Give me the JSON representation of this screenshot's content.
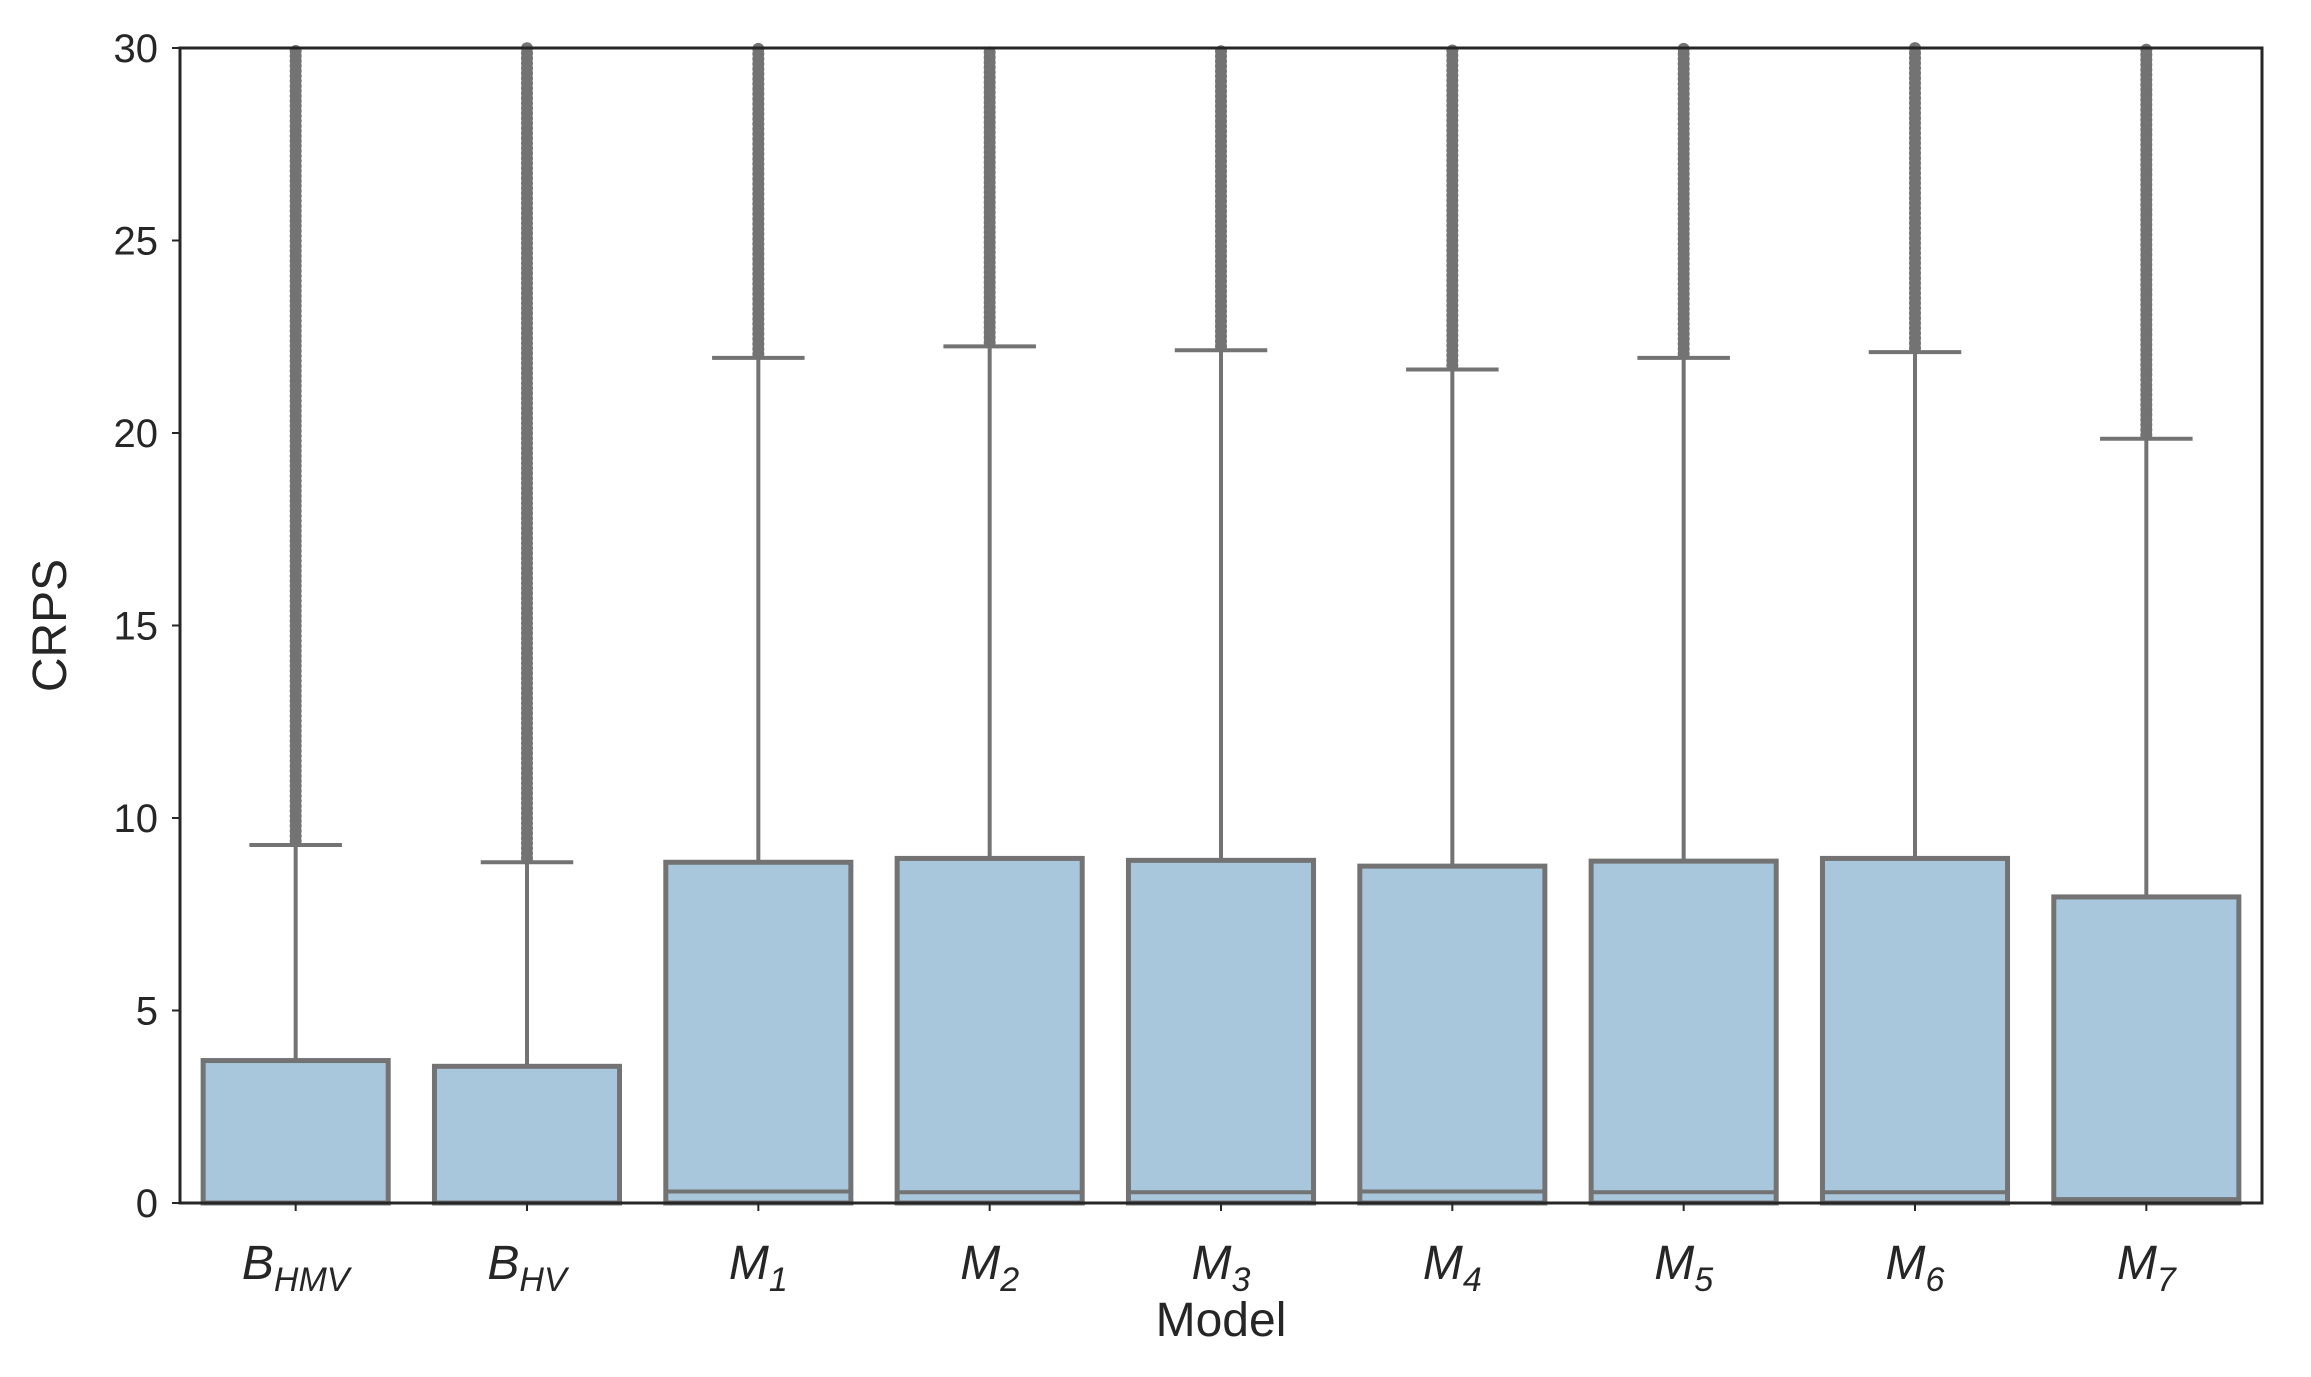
{
  "chart_data": {
    "type": "box",
    "xlabel": "Model",
    "ylabel": "CRPS",
    "ylim": [
      0,
      30
    ],
    "yticks": [
      0,
      5,
      10,
      15,
      20,
      25,
      30
    ],
    "grid": false,
    "box_color": "#a8c7dc",
    "line_color": "#737373",
    "categories": [
      {
        "base": "B",
        "sub": "HMV"
      },
      {
        "base": "B",
        "sub": "HV"
      },
      {
        "base": "M",
        "sub": "1"
      },
      {
        "base": "M",
        "sub": "2"
      },
      {
        "base": "M",
        "sub": "3"
      },
      {
        "base": "M",
        "sub": "4"
      },
      {
        "base": "M",
        "sub": "5"
      },
      {
        "base": "M",
        "sub": "6"
      },
      {
        "base": "M",
        "sub": "7"
      }
    ],
    "boxes": [
      {
        "q1": 0.0,
        "median": 0.0,
        "q3": 3.7,
        "whisker_low": 0.0,
        "whisker_high": 9.3,
        "outliers_from": 9.3,
        "outliers_to": 30
      },
      {
        "q1": 0.0,
        "median": 0.0,
        "q3": 3.55,
        "whisker_low": 0.0,
        "whisker_high": 8.85,
        "outliers_from": 8.85,
        "outliers_to": 30
      },
      {
        "q1": 0.0,
        "median": 0.3,
        "q3": 8.85,
        "whisker_low": 0.0,
        "whisker_high": 21.95,
        "outliers_from": 21.95,
        "outliers_to": 30
      },
      {
        "q1": 0.0,
        "median": 0.28,
        "q3": 8.95,
        "whisker_low": 0.0,
        "whisker_high": 22.25,
        "outliers_from": 22.25,
        "outliers_to": 30
      },
      {
        "q1": 0.0,
        "median": 0.28,
        "q3": 8.9,
        "whisker_low": 0.0,
        "whisker_high": 22.15,
        "outliers_from": 22.15,
        "outliers_to": 30
      },
      {
        "q1": 0.0,
        "median": 0.3,
        "q3": 8.75,
        "whisker_low": 0.0,
        "whisker_high": 21.65,
        "outliers_from": 21.65,
        "outliers_to": 30
      },
      {
        "q1": 0.0,
        "median": 0.28,
        "q3": 8.88,
        "whisker_low": 0.0,
        "whisker_high": 21.95,
        "outliers_from": 21.95,
        "outliers_to": 30
      },
      {
        "q1": 0.0,
        "median": 0.28,
        "q3": 8.95,
        "whisker_low": 0.0,
        "whisker_high": 22.1,
        "outliers_from": 22.1,
        "outliers_to": 30
      },
      {
        "q1": 0.0,
        "median": 0.1,
        "q3": 7.95,
        "whisker_low": 0.0,
        "whisker_high": 19.85,
        "outliers_from": 19.85,
        "outliers_to": 30
      }
    ]
  }
}
